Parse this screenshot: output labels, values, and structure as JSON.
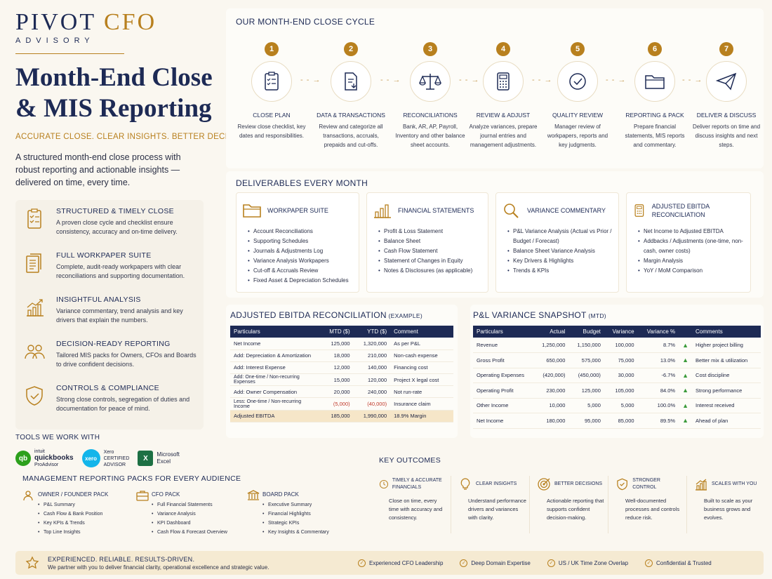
{
  "brand": {
    "name_a": "PIVOT ",
    "name_b": "CFO",
    "sub": "ADVISORY"
  },
  "hero": {
    "title_1": "Month-End Close",
    "title_2": "& MIS Reporting",
    "tagline": "ACCURATE CLOSE. CLEAR INSIGHTS. BETTER DECISIONS.",
    "intro": "A structured month-end close process with robust reporting and actionable insights — delivered on time, every time."
  },
  "features": [
    {
      "title": "STRUCTURED & TIMELY CLOSE",
      "text": "A proven close cycle and checklist ensure consistency, accuracy and on-time delivery.",
      "icon": "checklist-icon"
    },
    {
      "title": "FULL WORKPAPER SUITE",
      "text": "Complete, audit-ready workpapers with clear reconciliations and supporting documentation.",
      "icon": "documents-icon"
    },
    {
      "title": "INSIGHTFUL ANALYSIS",
      "text": "Variance commentary, trend analysis and key drivers that explain the numbers.",
      "icon": "growth-chart-icon"
    },
    {
      "title": "DECISION-READY REPORTING",
      "text": "Tailored MIS packs for Owners, CFOs and Boards to drive confident decisions.",
      "icon": "people-icon"
    },
    {
      "title": "CONTROLS & COMPLIANCE",
      "text": "Strong close controls, segregation of duties and documentation for peace of mind.",
      "icon": "shield-check-icon"
    }
  ],
  "tools": {
    "title": "TOOLS WE WORK WITH",
    "qb": {
      "l1": "intuit",
      "l2": "quickbooks",
      "l3": "ProAdvisor"
    },
    "xero": {
      "logo": "xero",
      "l1": "Xero",
      "l2": "CERTIFIED",
      "l3": "ADVISOR"
    },
    "excel": {
      "logo": "X",
      "l1": "Microsoft",
      "l2": "Excel"
    }
  },
  "cycle": {
    "title": "OUR MONTH-END CLOSE CYCLE",
    "steps": [
      {
        "n": "1",
        "title": "CLOSE PLAN",
        "text": "Review close checklist, key dates and responsibilities."
      },
      {
        "n": "2",
        "title": "DATA & TRANSACTIONS",
        "text": "Review and categorize all transactions, accruals, prepaids and cut-offs."
      },
      {
        "n": "3",
        "title": "RECONCILIATIONS",
        "text": "Bank, AR, AP, Payroll, Inventory and other balance sheet accounts."
      },
      {
        "n": "4",
        "title": "REVIEW & ADJUST",
        "text": "Analyze variances, prepare journal entries and management adjustments."
      },
      {
        "n": "5",
        "title": "QUALITY REVIEW",
        "text": "Manager review of workpapers, reports and key judgments."
      },
      {
        "n": "6",
        "title": "REPORTING & PACK",
        "text": "Prepare financial statements, MIS reports and commentary."
      },
      {
        "n": "7",
        "title": "DELIVER & DISCUSS",
        "text": "Deliver reports on time and discuss insights and next steps."
      }
    ],
    "arrow": "- - →"
  },
  "deliverables": {
    "title": "DELIVERABLES EVERY MONTH",
    "cards": [
      {
        "title": "WORKPAPER SUITE",
        "items": [
          "Account Reconciliations",
          "Supporting Schedules",
          "Journals & Adjustments Log",
          "Variance Analysis Workpapers",
          "Cut-off & Accruals Review",
          "Fixed Asset & Depreciation Schedules"
        ]
      },
      {
        "title": "FINANCIAL STATEMENTS",
        "items": [
          "Profit & Loss Statement",
          "Balance Sheet",
          "Cash Flow Statement",
          "Statement of Changes in Equity",
          "Notes & Disclosures (as applicable)"
        ]
      },
      {
        "title": "VARIANCE COMMENTARY",
        "items": [
          "P&L Variance Analysis (Actual vs Prior / Budget / Forecast)",
          "Balance Sheet Variance Analysis",
          "Key Drivers & Highlights",
          "Trends & KPIs"
        ]
      },
      {
        "title": "ADJUSTED EBITDA RECONCILIATION",
        "items": [
          "Net Income to Adjusted EBITDA",
          "Addbacks / Adjustments (one-time, non-cash, owner costs)",
          "Margin Analysis",
          "YoY / MoM Comparison"
        ]
      }
    ]
  },
  "ebitda": {
    "title": "ADJUSTED EBITDA RECONCILIATION",
    "title_small": " (EXAMPLE)",
    "headers": [
      "Particulars",
      "MTD ($)",
      "YTD ($)",
      "Comment"
    ],
    "rows": [
      [
        "Net Income",
        "125,000",
        "1,320,000",
        "As per P&L"
      ],
      [
        "Add: Depreciation & Amortization",
        "18,000",
        "210,000",
        "Non-cash expense"
      ],
      [
        "Add: Interest Expense",
        "12,000",
        "140,000",
        "Financing cost"
      ],
      [
        "Add: One-time / Non-recurring Expenses",
        "15,000",
        "120,000",
        "Project X legal cost"
      ],
      [
        "Add: Owner Compensation",
        "20,000",
        "240,000",
        "Not run-rate"
      ],
      [
        "Less: One-time / Non-recurring Income",
        "(5,000)",
        "(40,000)",
        "Insurance claim"
      ]
    ],
    "total": [
      "Adjusted EBITDA",
      "185,000",
      "1,990,000",
      "18.9% Margin"
    ]
  },
  "pl": {
    "title": "P&L VARIANCE SNAPSHOT",
    "title_small": " (MTD)",
    "headers": [
      "Particulars",
      "Actual",
      "Budget",
      "Variance",
      "Variance %",
      "Comments"
    ],
    "rows": [
      [
        "Revenue",
        "1,250,000",
        "1,150,000",
        "100,000",
        "8.7%",
        "Higher project billing"
      ],
      [
        "Gross Profit",
        "650,000",
        "575,000",
        "75,000",
        "13.0%",
        "Better mix & utilization"
      ],
      [
        "Operating Expenses",
        "(420,000)",
        "(450,000)",
        "30,000",
        "-6.7%",
        "Cost discipline"
      ],
      [
        "Operating Profit",
        "230,000",
        "125,000",
        "105,000",
        "84.0%",
        "Strong performance"
      ],
      [
        "Other Income",
        "10,000",
        "5,000",
        "5,000",
        "100.0%",
        "Interest received"
      ],
      [
        "Net Income",
        "180,000",
        "95,000",
        "85,000",
        "89.5%",
        "Ahead of plan"
      ]
    ],
    "arrow": "▲"
  },
  "packs": {
    "title": "MANAGEMENT REPORTING PACKS FOR EVERY AUDIENCE",
    "items": [
      {
        "title": "OWNER / FOUNDER PACK",
        "items": [
          "P&L Summary",
          "Cash Flow & Bank Position",
          "Key KPIs & Trends",
          "Top Line Insights"
        ]
      },
      {
        "title": "CFO PACK",
        "items": [
          "Full Financial Statements",
          "Variance Analysis",
          "KPI Dashboard",
          "Cash Flow & Forecast Overview"
        ]
      },
      {
        "title": "BOARD PACK",
        "items": [
          "Executive Summary",
          "Financial Highlights",
          "Strategic KPIs",
          "Key Insights & Commentary"
        ]
      }
    ]
  },
  "outcomes": {
    "title": "KEY OUTCOMES",
    "items": [
      {
        "title": "TIMELY & ACCURATE FINANCIALS",
        "text": "Close on time, every time with accuracy and consistency."
      },
      {
        "title": "CLEAR INSIGHTS",
        "text": "Understand performance drivers and variances with clarity."
      },
      {
        "title": "BETTER DECISIONS",
        "text": "Actionable reporting that supports confident decision-making."
      },
      {
        "title": "STRONGER CONTROL",
        "text": "Well-documented processes and controls reduce risk."
      },
      {
        "title": "SCALES WITH YOU",
        "text": "Built to scale as your business grows and evolves."
      }
    ]
  },
  "footer": {
    "title": "EXPERIENCED. RELIABLE. RESULTS-DRIVEN.",
    "text": "We partner with you to deliver financial clarity, operational excellence and strategic value.",
    "badges": [
      "Experienced CFO Leadership",
      "Deep Domain Expertise",
      "US / UK Time Zone Overlap",
      "Confidential & Trusted"
    ],
    "check": "✓"
  }
}
